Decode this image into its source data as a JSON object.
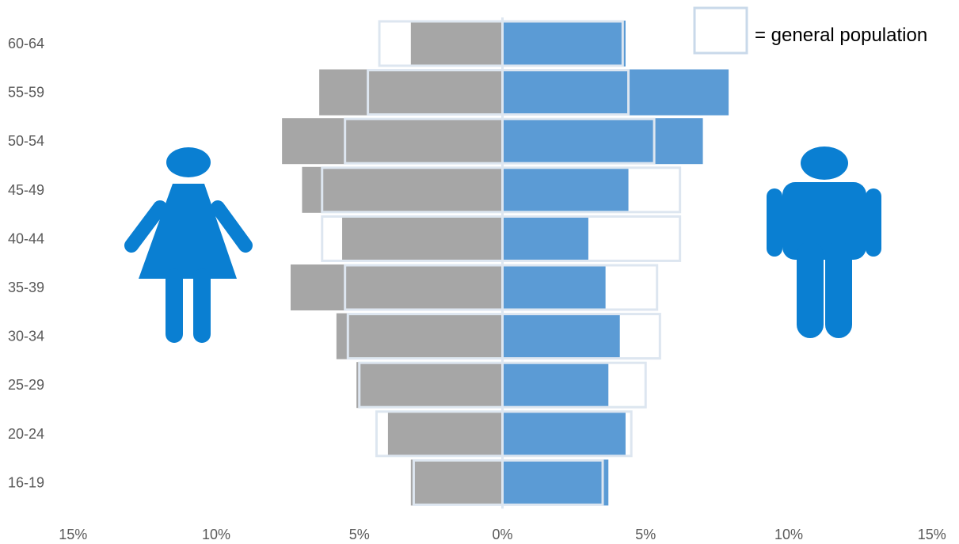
{
  "chart_data": {
    "type": "bar",
    "subtype": "population-pyramid",
    "orientation": "horizontal",
    "categories": [
      "16-19",
      "20-24",
      "25-29",
      "30-34",
      "35-39",
      "40-44",
      "45-49",
      "50-54",
      "55-59",
      "60-64"
    ],
    "series": [
      {
        "side": "left",
        "values": [
          3.2,
          4.0,
          5.1,
          5.8,
          7.4,
          5.6,
          7.0,
          7.7,
          6.4,
          3.2
        ]
      },
      {
        "side": "right",
        "values": [
          3.7,
          4.3,
          3.7,
          4.1,
          3.6,
          3.0,
          4.4,
          7.0,
          7.9,
          4.3
        ]
      }
    ],
    "general_population": {
      "left": [
        3.1,
        4.4,
        5.0,
        5.4,
        5.5,
        6.3,
        6.3,
        5.5,
        4.7,
        4.3
      ],
      "right": [
        3.5,
        4.5,
        5.0,
        5.5,
        5.4,
        6.2,
        6.2,
        5.3,
        4.4,
        4.2
      ]
    },
    "x_tick_labels": [
      "15%",
      "10%",
      "5%",
      "0%",
      "5%",
      "10%",
      "15%"
    ],
    "xlim": [
      -15,
      15
    ],
    "grid": false,
    "legend": {
      "label": "= general population",
      "placement": "top-right"
    },
    "colors": {
      "left_bar": "#a6a6a6",
      "right_bar": "#5b9bd5",
      "general_population_outline": "#dde6f0",
      "icon": "#0a7fd2",
      "zero_line": "#dde6f0"
    },
    "icons": {
      "left": "female-figure-icon",
      "right": "male-figure-icon"
    }
  }
}
